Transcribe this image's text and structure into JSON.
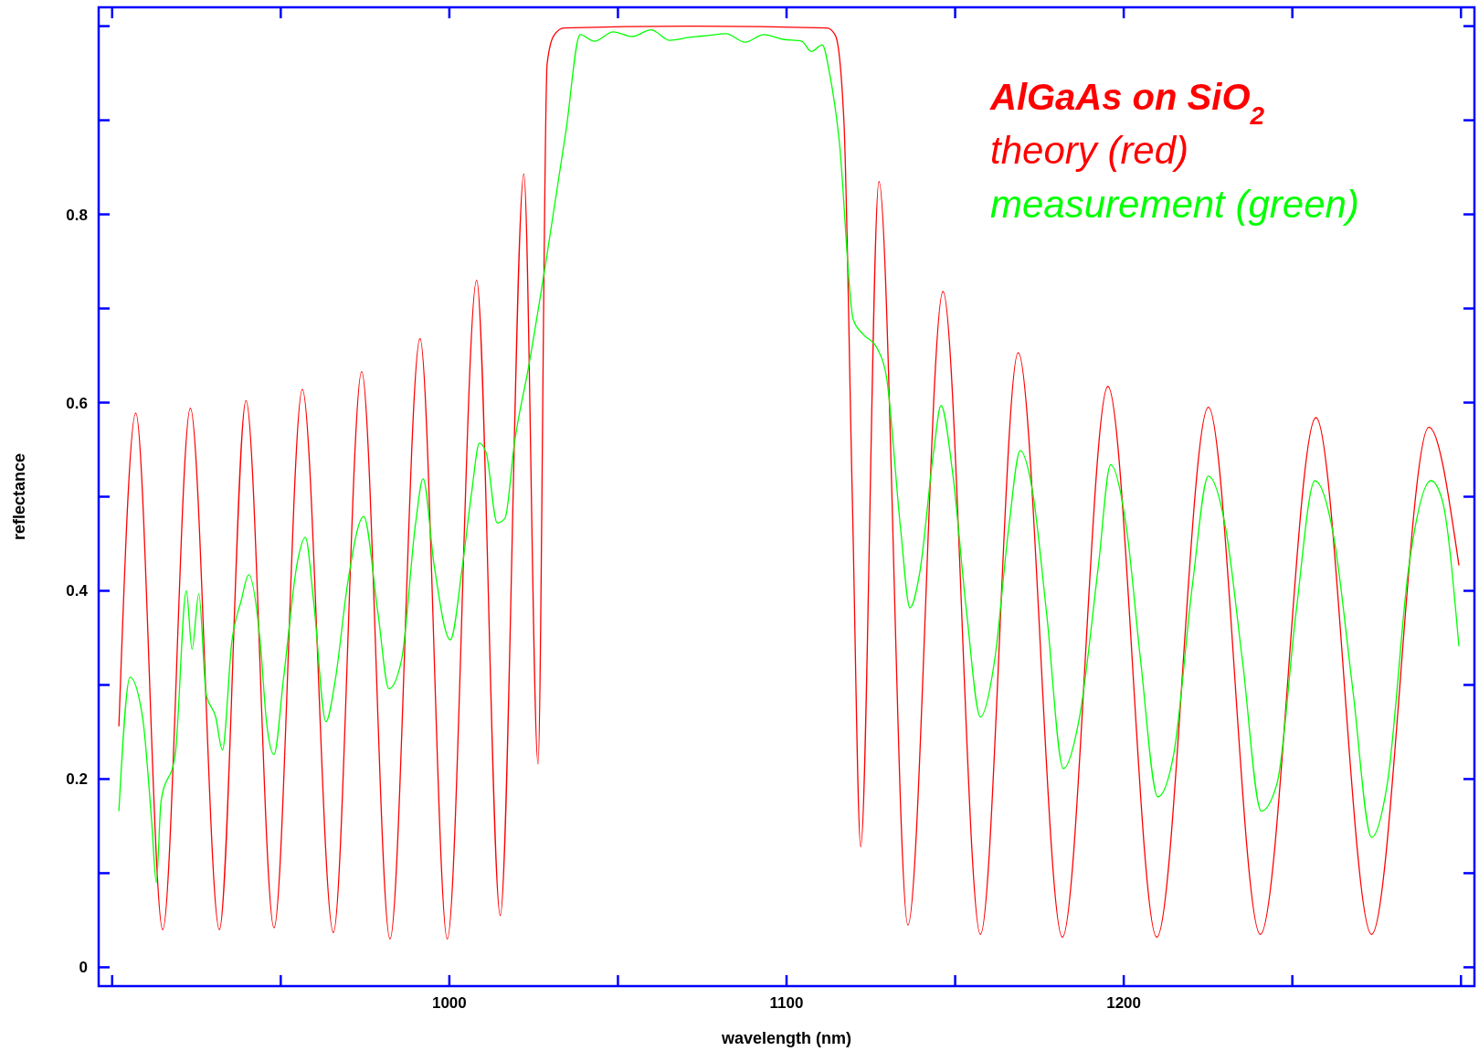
{
  "chart_data": {
    "type": "line",
    "xlabel": "wavelength (nm)",
    "ylabel": "reflectance",
    "xlim": [
      896,
      1304
    ],
    "ylim": [
      -0.02,
      1.02
    ],
    "xticks": [
      {
        "value": 900,
        "label": null
      },
      {
        "value": 950,
        "label": null
      },
      1000,
      {
        "value": 1050,
        "label": null
      },
      1100,
      {
        "value": 1150,
        "label": null
      },
      1200,
      {
        "value": 1250,
        "label": null
      },
      {
        "value": 1300,
        "label": null
      }
    ],
    "yticks": [
      0,
      {
        "value": 0.1,
        "label": null
      },
      0.2,
      {
        "value": 0.3,
        "label": null
      },
      0.4,
      {
        "value": 0.5,
        "label": null
      },
      0.6,
      {
        "value": 0.7,
        "label": null
      },
      0.8,
      {
        "value": 0.9,
        "label": null
      },
      {
        "value": 1.0,
        "label": null
      }
    ],
    "grid": false,
    "marker": "none",
    "line_style": "solid",
    "annotations": [
      "AlGaAs on SiO$_{2}$",
      "theory (red)",
      "measurement (green)"
    ],
    "series": [
      {
        "color": "#ff0000",
        "x": [
          902,
          907,
          915,
          923.2,
          931.8,
          939.7,
          948,
          956.4,
          965.6,
          974,
          982.4,
          991.3,
          999.4,
          1008.1,
          1015.1,
          1022.1,
          1026.3,
          1029,
          1031,
          1034,
          1070,
          1112,
          1114.5,
          1117,
          1119.5,
          1122,
          1127.4,
          1136,
          1146.4,
          1157.5,
          1168.7,
          1181.8,
          1195.3,
          1209.8,
          1225.1,
          1240.5,
          1257,
          1273.5,
          1290.5,
          1299.4
        ],
        "values": [
          0.256,
          0.589,
          0.04,
          0.594,
          0.04,
          0.602,
          0.042,
          0.614,
          0.037,
          0.633,
          0.03,
          0.668,
          0.03,
          0.73,
          0.055,
          0.843,
          0.216,
          0.96,
          0.99,
          0.998,
          1.0,
          0.998,
          0.99,
          0.9,
          0.5,
          0.128,
          0.835,
          0.045,
          0.718,
          0.035,
          0.653,
          0.032,
          0.617,
          0.032,
          0.595,
          0.035,
          0.584,
          0.035,
          0.574,
          0.427
        ]
      },
      {
        "color": "#00ff00",
        "x": [
          902,
          905.3,
          909,
          911.7,
          913.1,
          914.5,
          918.7,
          922,
          923.7,
          925.7,
          927.9,
          930.7,
          932.7,
          935.5,
          938.3,
          940.5,
          943.9,
          945.8,
          948,
          950.8,
          955,
          957.3,
          959.8,
          963.4,
          966.2,
          969.8,
          974.6,
          978.8,
          982.1,
          985.8,
          990,
          992.2,
          995.5,
          1000.3,
          1003.9,
          1006.7,
          1008.9,
          1010.9,
          1014.2,
          1016.5,
          1019.3,
          1023.5,
          1029,
          1034.6,
          1038.8,
          1043,
          1048.6,
          1054.2,
          1059.8,
          1065.4,
          1071,
          1076.5,
          1082.1,
          1087.7,
          1093.3,
          1098.9,
          1104.5,
          1107.3,
          1110.6,
          1112.8,
          1115.6,
          1119.8,
          1122.6,
          1126.8,
          1129.6,
          1133.8,
          1136.6,
          1139.4,
          1143.6,
          1145.8,
          1149.2,
          1153.4,
          1157.5,
          1161.7,
          1165.9,
          1169.3,
          1172.9,
          1177.1,
          1182.1,
          1186.9,
          1192.5,
          1196.1,
          1200.8,
          1205,
          1210.1,
          1214.8,
          1220.4,
          1225.1,
          1230.2,
          1235.2,
          1240.8,
          1245.5,
          1251.1,
          1256.7,
          1262.3,
          1267.9,
          1273.5,
          1278.2,
          1284.6,
          1291.1,
          1294.4,
          1299.4
        ],
        "values": [
          0.166,
          0.308,
          0.266,
          0.156,
          0.09,
          0.176,
          0.226,
          0.4,
          0.338,
          0.397,
          0.29,
          0.266,
          0.231,
          0.346,
          0.39,
          0.417,
          0.346,
          0.26,
          0.226,
          0.306,
          0.432,
          0.457,
          0.387,
          0.261,
          0.306,
          0.407,
          0.479,
          0.377,
          0.296,
          0.326,
          0.472,
          0.519,
          0.427,
          0.348,
          0.427,
          0.507,
          0.557,
          0.547,
          0.472,
          0.477,
          0.557,
          0.638,
          0.758,
          0.889,
          0.991,
          0.984,
          0.994,
          0.989,
          0.996,
          0.985,
          0.988,
          0.99,
          0.992,
          0.983,
          0.991,
          0.986,
          0.984,
          0.973,
          0.98,
          0.949,
          0.879,
          0.688,
          0.673,
          0.658,
          0.628,
          0.467,
          0.382,
          0.417,
          0.547,
          0.597,
          0.527,
          0.377,
          0.266,
          0.326,
          0.467,
          0.549,
          0.507,
          0.377,
          0.211,
          0.266,
          0.427,
          0.534,
          0.467,
          0.326,
          0.181,
          0.226,
          0.407,
          0.522,
          0.467,
          0.326,
          0.166,
          0.196,
          0.377,
          0.517,
          0.457,
          0.296,
          0.138,
          0.196,
          0.427,
          0.517,
          0.497,
          0.341
        ]
      }
    ]
  }
}
